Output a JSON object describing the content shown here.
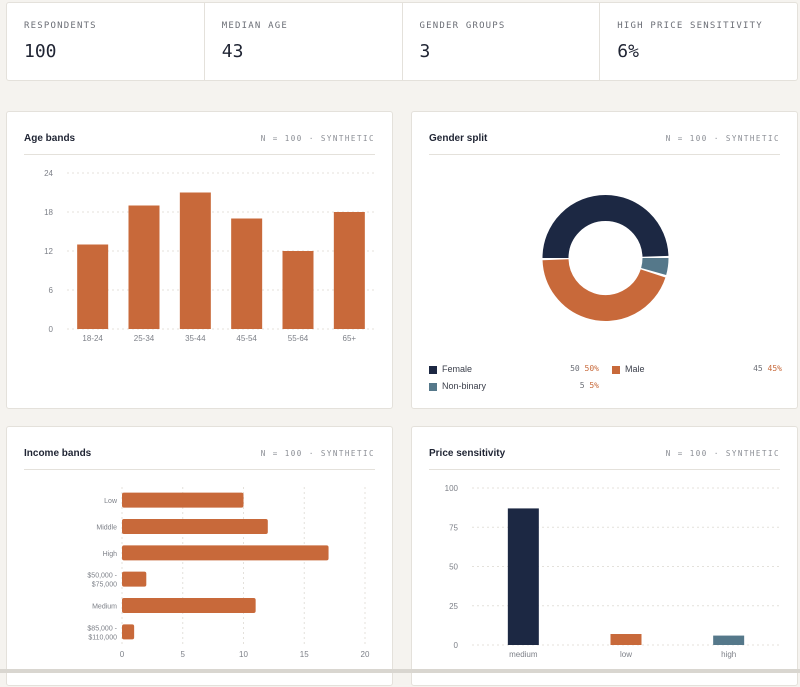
{
  "kpis": [
    {
      "label": "RESPONDENTS",
      "value": "100"
    },
    {
      "label": "MEDIAN AGE",
      "value": "43"
    },
    {
      "label": "GENDER GROUPS",
      "value": "3"
    },
    {
      "label": "HIGH PRICE SENSITIVITY",
      "value": "6%"
    }
  ],
  "colors": {
    "accent": "#c8693a",
    "navy": "#1c2843",
    "slate": "#55788a",
    "grid": "#e4e1db",
    "axis_text": "#7d8088"
  },
  "cards": {
    "age": {
      "title": "Age bands",
      "meta": "N = 100 · SYNTHETIC"
    },
    "gender": {
      "title": "Gender split",
      "meta": "N = 100 · SYNTHETIC"
    },
    "income": {
      "title": "Income bands",
      "meta": "N = 100 · SYNTHETIC"
    },
    "price": {
      "title": "Price sensitivity",
      "meta": "N = 100 · SYNTHETIC"
    }
  },
  "gender_legend": [
    {
      "label": "Female",
      "count": "50",
      "pct": "50%",
      "color": "#1c2843"
    },
    {
      "label": "Male",
      "count": "45",
      "pct": "45%",
      "color": "#c8693a"
    },
    {
      "label": "Non-binary",
      "count": "5",
      "pct": "5%",
      "color": "#55788a"
    }
  ],
  "chart_data": [
    {
      "id": "age",
      "type": "bar",
      "title": "Age bands",
      "categories": [
        "18-24",
        "25-34",
        "35-44",
        "45-54",
        "55-64",
        "65+"
      ],
      "values": [
        13,
        19,
        21,
        17,
        12,
        18
      ],
      "ylim": [
        0,
        24
      ],
      "yticks": [
        0,
        6,
        12,
        18,
        24
      ],
      "grid": true,
      "color": "#c8693a"
    },
    {
      "id": "gender",
      "type": "pie",
      "title": "Gender split",
      "labels": [
        "Female",
        "Non-binary",
        "Male"
      ],
      "values": [
        50,
        5,
        45
      ],
      "colors": [
        "#1c2843",
        "#55788a",
        "#c8693a"
      ],
      "donut": true
    },
    {
      "id": "income",
      "type": "bar",
      "orientation": "horizontal",
      "title": "Income bands",
      "categories": [
        "Low",
        "Middle",
        "High",
        "$50,000 - $75,000",
        "Medium",
        "$85,000 - $110,000"
      ],
      "category_lines": [
        [
          "Low"
        ],
        [
          "Middle"
        ],
        [
          "High"
        ],
        [
          "$50,000 -",
          "$75,000"
        ],
        [
          "Medium"
        ],
        [
          "$85,000 -",
          "$110,000"
        ]
      ],
      "values": [
        10,
        12,
        17,
        2,
        11,
        1
      ],
      "xlim": [
        0,
        20
      ],
      "xticks": [
        0,
        5,
        10,
        15,
        20
      ],
      "grid": true,
      "color": "#c8693a"
    },
    {
      "id": "price",
      "type": "bar",
      "title": "Price sensitivity",
      "categories": [
        "medium",
        "low",
        "high"
      ],
      "values": [
        87,
        7,
        6
      ],
      "colors": [
        "#1c2843",
        "#c8693a",
        "#55788a"
      ],
      "ylim": [
        0,
        100
      ],
      "yticks": [
        0,
        25,
        50,
        75,
        100
      ],
      "grid": true
    }
  ]
}
